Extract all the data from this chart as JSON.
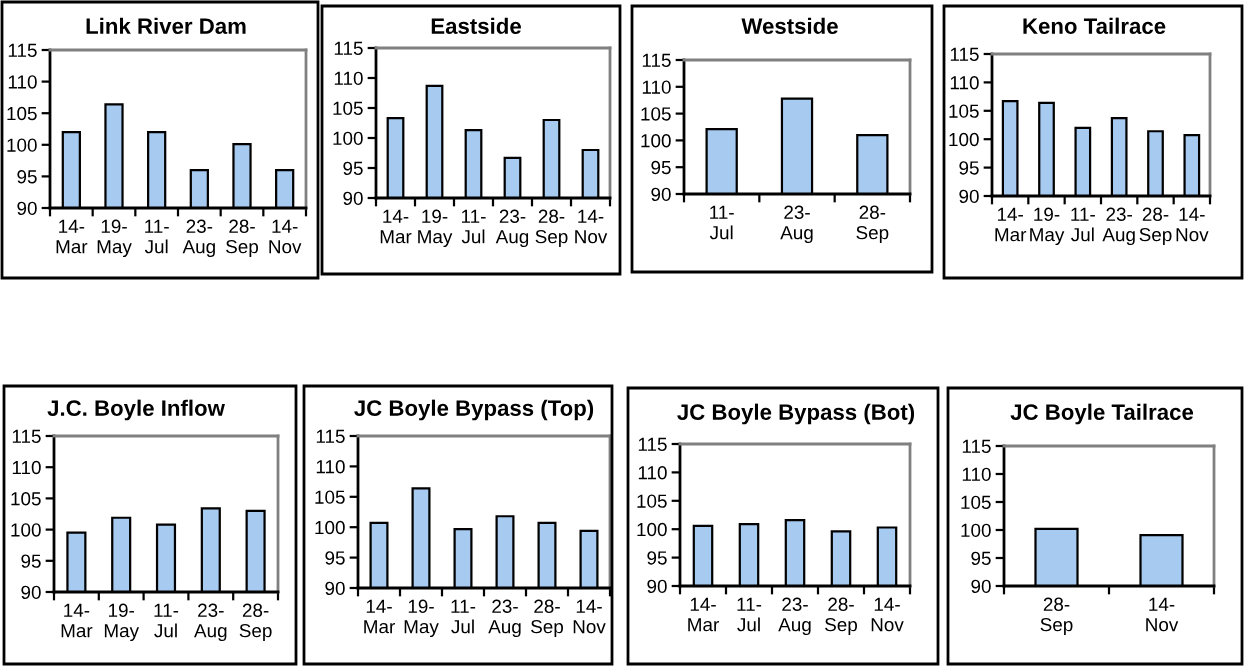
{
  "chart_data": [
    {
      "type": "bar",
      "title": "Link River Dam",
      "categories": [
        "14-Mar",
        "19-May",
        "11-Jul",
        "23-Aug",
        "28-Sep",
        "14-Nov"
      ],
      "values": [
        102.0,
        106.4,
        102.0,
        96.0,
        100.1,
        96.0
      ],
      "color": "#a6caf0",
      "ylim": [
        90,
        115
      ],
      "yticks": [
        90,
        95,
        100,
        105,
        110,
        115
      ]
    },
    {
      "type": "bar",
      "title": "Eastside",
      "categories": [
        "14-Mar",
        "19-May",
        "11-Jul",
        "23-Aug",
        "28-Sep",
        "14-Nov"
      ],
      "values": [
        103.3,
        108.7,
        101.3,
        96.7,
        103.0,
        98.0
      ],
      "color": "#a6caf0",
      "ylim": [
        90,
        115
      ],
      "yticks": [
        90,
        95,
        100,
        105,
        110,
        115
      ]
    },
    {
      "type": "bar",
      "title": "Westside",
      "categories": [
        "11-Jul",
        "23-Aug",
        "28-Sep"
      ],
      "values": [
        102.1,
        107.8,
        101.0
      ],
      "color": "#a6caf0",
      "ylim": [
        90,
        115
      ],
      "yticks": [
        90,
        95,
        100,
        105,
        110,
        115
      ]
    },
    {
      "type": "bar",
      "title": "Keno Tailrace",
      "categories": [
        "14-Mar",
        "19-May",
        "11-Jul",
        "23-Aug",
        "28-Sep",
        "14-Nov"
      ],
      "values": [
        106.7,
        106.4,
        102.0,
        103.7,
        101.4,
        100.7
      ],
      "color": "#a6caf0",
      "ylim": [
        90,
        115
      ],
      "yticks": [
        90,
        95,
        100,
        105,
        110,
        115
      ]
    },
    {
      "type": "bar",
      "title": "J.C. Boyle Inflow",
      "categories": [
        "14-Mar",
        "19-May",
        "11-Jul",
        "23-Aug",
        "28-Sep"
      ],
      "values": [
        99.5,
        101.9,
        100.8,
        103.4,
        103.0
      ],
      "color": "#a6caf0",
      "ylim": [
        90,
        115
      ],
      "yticks": [
        90,
        95,
        100,
        105,
        110,
        115
      ]
    },
    {
      "type": "bar",
      "title": "JC Boyle Bypass (Top)",
      "categories": [
        "14-Mar",
        "19-May",
        "11-Jul",
        "23-Aug",
        "28-Sep",
        "14-Nov"
      ],
      "values": [
        100.7,
        106.4,
        99.7,
        101.8,
        100.7,
        99.4
      ],
      "color": "#a6caf0",
      "ylim": [
        90,
        115
      ],
      "yticks": [
        90,
        95,
        100,
        105,
        110,
        115
      ]
    },
    {
      "type": "bar",
      "title": "JC Boyle Bypass (Bot)",
      "categories": [
        "14-Mar",
        "11-Jul",
        "23-Aug",
        "28-Sep",
        "14-Nov"
      ],
      "values": [
        100.6,
        100.9,
        101.6,
        99.6,
        100.3
      ],
      "color": "#a6caf0",
      "ylim": [
        90,
        115
      ],
      "yticks": [
        90,
        95,
        100,
        105,
        110,
        115
      ]
    },
    {
      "type": "bar",
      "title": "JC Boyle Tailrace",
      "categories": [
        "28-Sep",
        "14-Nov"
      ],
      "values": [
        100.2,
        99.1
      ],
      "color": "#a6caf0",
      "ylim": [
        90,
        115
      ],
      "yticks": [
        90,
        95,
        100,
        105,
        110,
        115
      ]
    }
  ]
}
